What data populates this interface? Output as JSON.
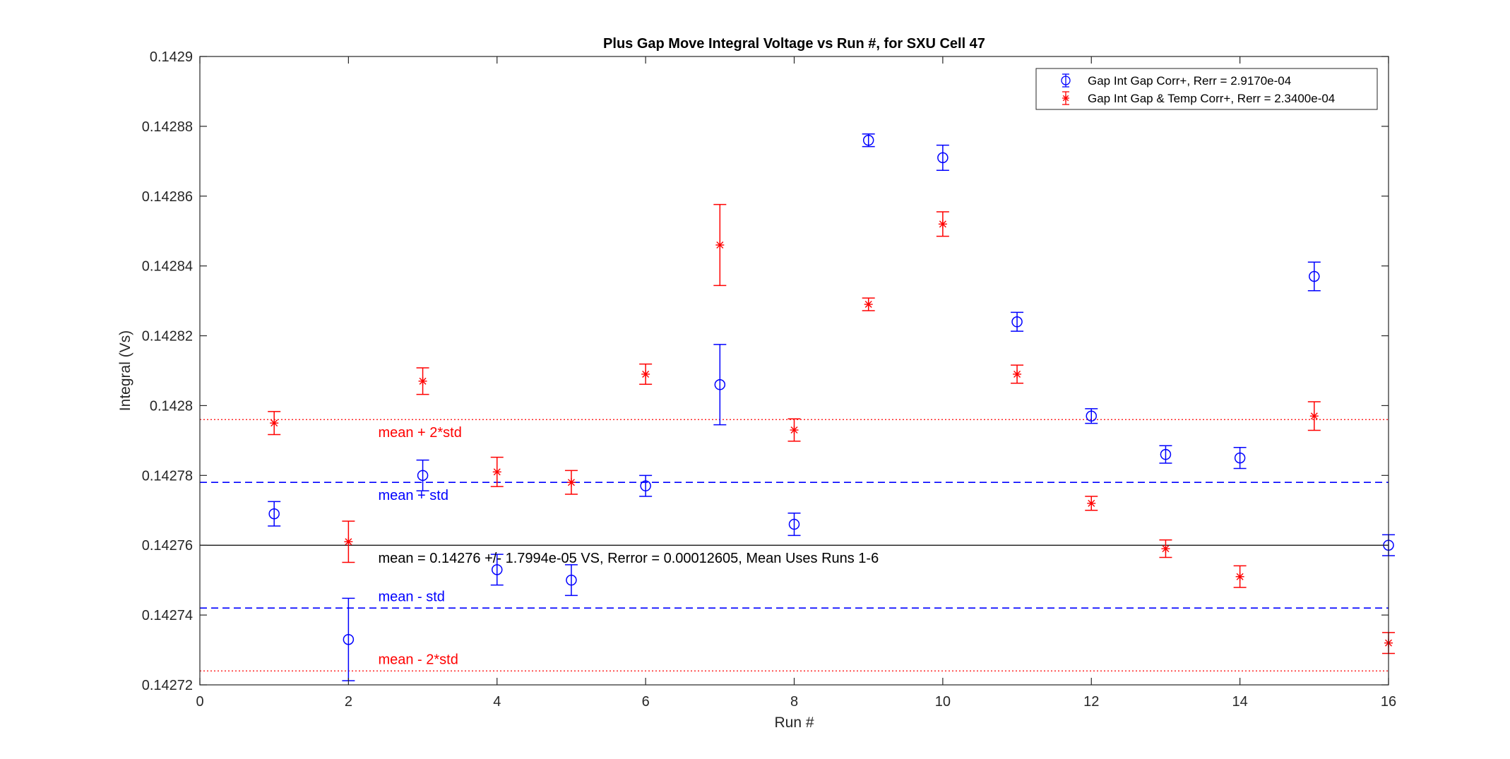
{
  "chart_data": {
    "type": "scatter",
    "title": "Plus Gap Move Integral Voltage vs Run #, for SXU Cell 47",
    "xlabel": "Run #",
    "ylabel": "Integral (Vs)",
    "xlim": [
      0,
      16
    ],
    "ylim": [
      0.14272,
      0.1429
    ],
    "xticks": [
      0,
      2,
      4,
      6,
      8,
      10,
      12,
      14,
      16
    ],
    "xtick_labels": [
      "0",
      "2",
      "4",
      "6",
      "8",
      "10",
      "12",
      "14",
      "16"
    ],
    "yticks": [
      0.14272,
      0.14274,
      0.14276,
      0.14278,
      0.1428,
      0.14282,
      0.14284,
      0.14286,
      0.14288,
      0.1429
    ],
    "ytick_labels": [
      "0.14272",
      "0.14274",
      "0.14276",
      "0.14278",
      "0.1428",
      "0.14282",
      "0.14284",
      "0.14286",
      "0.14288",
      "0.1429"
    ],
    "grid": false,
    "legend_position": "top-right",
    "series": [
      {
        "name": "Gap Int Gap Corr+, Rerr = 2.9170e-04",
        "color": "#0000ff",
        "marker": "circle",
        "x": [
          1,
          2,
          3,
          4,
          5,
          6,
          7,
          8,
          9,
          10,
          11,
          12,
          13,
          14,
          15,
          16
        ],
        "y": [
          0.142769,
          0.142733,
          0.14278,
          0.142753,
          0.14275,
          0.142777,
          0.142806,
          0.142766,
          0.142876,
          0.142871,
          0.142824,
          0.142797,
          0.142786,
          0.142785,
          0.142837,
          0.14276
        ],
        "err": [
          3.5e-06,
          1.18e-05,
          4.4e-06,
          4.4e-06,
          4.4e-06,
          3e-06,
          1.15e-05,
          3.2e-06,
          1.8e-06,
          3.6e-06,
          2.7e-06,
          2.1e-06,
          2.5e-06,
          3e-06,
          4.1e-06,
          3e-06
        ]
      },
      {
        "name": "Gap Int Gap & Temp  Corr+, Rerr = 2.3400e-04",
        "color": "#ff0000",
        "marker": "asterisk",
        "x": [
          1,
          2,
          3,
          4,
          5,
          6,
          7,
          8,
          9,
          10,
          11,
          12,
          13,
          14,
          15,
          16
        ],
        "y": [
          0.142795,
          0.142761,
          0.142807,
          0.142781,
          0.142778,
          0.142809,
          0.142846,
          0.142793,
          0.142829,
          0.142852,
          0.142809,
          0.142772,
          0.142759,
          0.142751,
          0.142797,
          0.142732
        ],
        "err": [
          3.3e-06,
          5.9e-06,
          3.8e-06,
          4.2e-06,
          3.4e-06,
          2.9e-06,
          1.16e-05,
          3.2e-06,
          1.8e-06,
          3.5e-06,
          2.6e-06,
          2e-06,
          2.5e-06,
          3.1e-06,
          4.1e-06,
          3e-06
        ]
      }
    ],
    "reference_lines": [
      {
        "y": 0.14276,
        "style": "solid",
        "color": "#000000"
      },
      {
        "y": 0.142778,
        "style": "dashed",
        "color": "#0000ff"
      },
      {
        "y": 0.142742,
        "style": "dashed",
        "color": "#0000ff"
      },
      {
        "y": 0.142796,
        "style": "dotted",
        "color": "#ff0000"
      },
      {
        "y": 0.142724,
        "style": "dotted",
        "color": "#ff0000"
      }
    ],
    "annotations": [
      {
        "text": "mean + 2*std",
        "x": 2.4,
        "y": 0.142791,
        "color": "#ff0000"
      },
      {
        "text": "mean + std",
        "x": 2.4,
        "y": 0.142773,
        "color": "#0000ff"
      },
      {
        "text": "mean = 0.14276 +/- 1.7994e-05 VS, Rerror = 0.00012605, Mean Uses Runs 1-6",
        "x": 2.4,
        "y": 0.142755,
        "color": "#000000"
      },
      {
        "text": "mean - std",
        "x": 2.4,
        "y": 0.142744,
        "color": "#0000ff"
      },
      {
        "text": "mean - 2*std",
        "x": 2.4,
        "y": 0.142726,
        "color": "#ff0000"
      }
    ]
  }
}
